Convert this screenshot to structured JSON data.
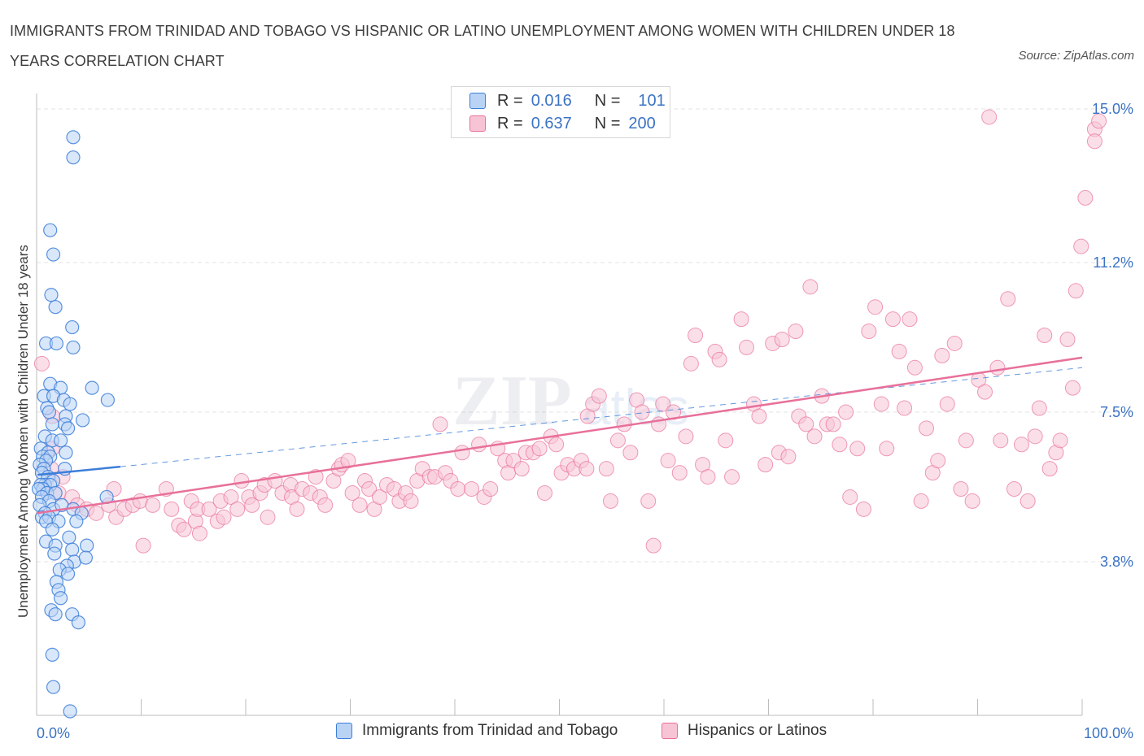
{
  "header": {
    "title": "IMMIGRANTS FROM TRINIDAD AND TOBAGO VS HISPANIC OR LATINO UNEMPLOYMENT AMONG WOMEN WITH CHILDREN UNDER 18 YEARS CORRELATION CHART",
    "source": "Source: ZipAtlas.com"
  },
  "colors": {
    "blue": "#3d7fd9",
    "blue_fill": "#b9d3f5",
    "pink": "#e8709a",
    "pink_fill": "#f7c4d6",
    "axis_text": "#3b73c4",
    "grid": "#e3e3e3"
  },
  "legend": {
    "rows": [
      {
        "r_label": "R =",
        "r_value": "0.016",
        "n_label": "N =",
        "n_value": "101"
      },
      {
        "r_label": "R =",
        "r_value": "0.637",
        "n_label": "N =",
        "n_value": "200"
      }
    ],
    "bottom": [
      {
        "label": "Immigrants from Trinidad and Tobago"
      },
      {
        "label": "Hispanics or Latinos"
      }
    ]
  },
  "chart_data": {
    "type": "scatter",
    "title": "IMMIGRANTS FROM TRINIDAD AND TOBAGO VS HISPANIC OR LATINO UNEMPLOYMENT AMONG WOMEN WITH CHILDREN UNDER 18 YEARS CORRELATION CHART",
    "ylabel": "Unemployment Among Women with Children Under 18 years",
    "xlabel": "",
    "xlim": [
      0,
      100
    ],
    "ylim": [
      0,
      15.0
    ],
    "x_tick_labels": [
      "0.0%",
      "100.0%"
    ],
    "y_ticks": [
      3.8,
      7.5,
      11.2,
      15.0
    ],
    "y_tick_labels": [
      "3.8%",
      "7.5%",
      "11.2%",
      "15.0%"
    ],
    "grid": true,
    "legend_position": "top-center",
    "watermark": "ZIPatlas",
    "series": [
      {
        "name": "Immigrants from Trinidad and Tobago",
        "r": 0.016,
        "n": 101,
        "trend": {
          "x": [
            0.1,
            8.0
          ],
          "y": [
            5.95,
            6.15
          ],
          "dashed_extension_to": [
            100,
            8.6
          ]
        },
        "points": [
          [
            3.5,
            14.3
          ],
          [
            3.5,
            13.8
          ],
          [
            1.3,
            12.0
          ],
          [
            1.6,
            11.4
          ],
          [
            1.4,
            10.4
          ],
          [
            1.8,
            10.1
          ],
          [
            3.4,
            9.6
          ],
          [
            0.9,
            9.2
          ],
          [
            1.9,
            9.2
          ],
          [
            3.5,
            9.1
          ],
          [
            1.3,
            8.2
          ],
          [
            2.3,
            8.1
          ],
          [
            5.3,
            8.1
          ],
          [
            0.7,
            7.9
          ],
          [
            1.6,
            7.9
          ],
          [
            2.6,
            7.8
          ],
          [
            3.2,
            7.7
          ],
          [
            6.8,
            7.8
          ],
          [
            1.0,
            7.6
          ],
          [
            1.2,
            7.5
          ],
          [
            2.8,
            7.4
          ],
          [
            4.4,
            7.3
          ],
          [
            1.5,
            7.2
          ],
          [
            2.7,
            7.2
          ],
          [
            3.0,
            7.1
          ],
          [
            0.8,
            6.9
          ],
          [
            1.5,
            6.8
          ],
          [
            2.3,
            6.8
          ],
          [
            0.4,
            6.6
          ],
          [
            1.1,
            6.5
          ],
          [
            2.8,
            6.5
          ],
          [
            0.6,
            6.4
          ],
          [
            1.3,
            6.4
          ],
          [
            0.9,
            6.3
          ],
          [
            0.3,
            6.2
          ],
          [
            0.7,
            6.1
          ],
          [
            2.7,
            6.1
          ],
          [
            0.5,
            6.0
          ],
          [
            1.1,
            5.9
          ],
          [
            1.6,
            5.8
          ],
          [
            0.8,
            5.7
          ],
          [
            0.4,
            5.7
          ],
          [
            1.3,
            5.7
          ],
          [
            0.6,
            5.6
          ],
          [
            0.2,
            5.6
          ],
          [
            1.0,
            5.5
          ],
          [
            1.8,
            5.5
          ],
          [
            0.5,
            5.4
          ],
          [
            1.2,
            5.3
          ],
          [
            0.3,
            5.2
          ],
          [
            1.6,
            5.1
          ],
          [
            0.8,
            5.0
          ],
          [
            2.4,
            5.2
          ],
          [
            3.5,
            5.1
          ],
          [
            4.3,
            5.0
          ],
          [
            6.7,
            5.4
          ],
          [
            0.5,
            4.9
          ],
          [
            1.2,
            4.9
          ],
          [
            0.9,
            4.8
          ],
          [
            2.1,
            4.8
          ],
          [
            3.8,
            4.8
          ],
          [
            1.5,
            4.6
          ],
          [
            3.1,
            4.4
          ],
          [
            0.9,
            4.3
          ],
          [
            1.8,
            4.2
          ],
          [
            3.4,
            4.1
          ],
          [
            4.8,
            4.2
          ],
          [
            1.7,
            4.0
          ],
          [
            3.6,
            3.8
          ],
          [
            4.7,
            3.9
          ],
          [
            2.9,
            3.7
          ],
          [
            2.2,
            3.6
          ],
          [
            3.0,
            3.5
          ],
          [
            1.9,
            3.3
          ],
          [
            2.1,
            3.1
          ],
          [
            2.3,
            2.9
          ],
          [
            1.4,
            2.6
          ],
          [
            1.8,
            2.5
          ],
          [
            3.4,
            2.5
          ],
          [
            4.0,
            2.3
          ],
          [
            1.5,
            1.5
          ],
          [
            1.6,
            0.7
          ],
          [
            3.2,
            0.1
          ]
        ]
      },
      {
        "name": "Hispanics or Latinos",
        "r": 0.637,
        "n": 200,
        "trend": {
          "x": [
            0,
            100
          ],
          "y": [
            5.0,
            8.85
          ]
        },
        "points": [
          [
            0.5,
            8.7
          ],
          [
            1.5,
            7.4
          ],
          [
            1.5,
            6.6
          ],
          [
            1.4,
            6.1
          ],
          [
            2.5,
            5.9
          ],
          [
            2.1,
            5.5
          ],
          [
            3.4,
            5.4
          ],
          [
            3.9,
            5.2
          ],
          [
            4.8,
            5.1
          ],
          [
            5.7,
            5.0
          ],
          [
            6.9,
            5.2
          ],
          [
            7.4,
            5.6
          ],
          [
            7.6,
            4.9
          ],
          [
            8.4,
            5.1
          ],
          [
            9.2,
            5.2
          ],
          [
            9.9,
            5.3
          ],
          [
            10.2,
            4.2
          ],
          [
            11.1,
            5.2
          ],
          [
            12.4,
            5.6
          ],
          [
            12.9,
            5.1
          ],
          [
            13.6,
            4.7
          ],
          [
            14.1,
            4.6
          ],
          [
            14.8,
            5.3
          ],
          [
            15.2,
            4.8
          ],
          [
            15.4,
            5.1
          ],
          [
            15.6,
            4.5
          ],
          [
            16.5,
            5.1
          ],
          [
            17.3,
            4.8
          ],
          [
            17.6,
            5.3
          ],
          [
            17.9,
            4.9
          ],
          [
            18.6,
            5.4
          ],
          [
            19.2,
            5.1
          ],
          [
            19.6,
            5.8
          ],
          [
            20.3,
            5.4
          ],
          [
            20.6,
            5.2
          ],
          [
            21.4,
            5.5
          ],
          [
            21.8,
            5.7
          ],
          [
            22.1,
            4.9
          ],
          [
            22.8,
            5.8
          ],
          [
            23.5,
            5.5
          ],
          [
            24.3,
            5.7
          ],
          [
            24.4,
            5.4
          ],
          [
            24.9,
            5.1
          ],
          [
            25.4,
            5.6
          ],
          [
            26.2,
            5.5
          ],
          [
            26.7,
            5.9
          ],
          [
            27.1,
            5.4
          ],
          [
            27.6,
            5.2
          ],
          [
            28.4,
            5.8
          ],
          [
            28.9,
            6.1
          ],
          [
            29.2,
            6.2
          ],
          [
            29.8,
            6.3
          ],
          [
            30.2,
            5.5
          ],
          [
            30.9,
            5.2
          ],
          [
            31.4,
            5.8
          ],
          [
            31.8,
            5.6
          ],
          [
            32.3,
            5.1
          ],
          [
            32.8,
            5.4
          ],
          [
            33.5,
            5.7
          ],
          [
            34.2,
            5.6
          ],
          [
            34.7,
            5.3
          ],
          [
            35.3,
            5.5
          ],
          [
            35.8,
            5.3
          ],
          [
            36.4,
            5.8
          ],
          [
            36.9,
            6.1
          ],
          [
            37.6,
            5.9
          ],
          [
            38.1,
            5.9
          ],
          [
            38.6,
            7.2
          ],
          [
            39.1,
            6.0
          ],
          [
            39.6,
            5.8
          ],
          [
            40.3,
            5.6
          ],
          [
            40.7,
            6.5
          ],
          [
            41.6,
            5.6
          ],
          [
            42.3,
            6.7
          ],
          [
            42.8,
            5.4
          ],
          [
            43.4,
            5.6
          ],
          [
            44.1,
            6.6
          ],
          [
            44.8,
            6.3
          ],
          [
            45.1,
            6.0
          ],
          [
            45.6,
            6.3
          ],
          [
            46.4,
            6.1
          ],
          [
            46.8,
            6.5
          ],
          [
            47.5,
            6.5
          ],
          [
            48.1,
            6.6
          ],
          [
            48.6,
            5.5
          ],
          [
            49.2,
            6.9
          ],
          [
            49.7,
            6.7
          ],
          [
            50.2,
            6.0
          ],
          [
            50.8,
            6.2
          ],
          [
            51.4,
            6.1
          ],
          [
            52.1,
            6.3
          ],
          [
            52.6,
            6.1
          ],
          [
            52.7,
            7.4
          ],
          [
            53.2,
            7.7
          ],
          [
            53.8,
            7.9
          ],
          [
            54.5,
            6.1
          ],
          [
            54.9,
            5.3
          ],
          [
            55.6,
            6.8
          ],
          [
            56.2,
            7.2
          ],
          [
            56.8,
            6.5
          ],
          [
            57.4,
            7.8
          ],
          [
            57.9,
            7.5
          ],
          [
            58.5,
            5.3
          ],
          [
            59.0,
            4.2
          ],
          [
            59.5,
            7.2
          ],
          [
            59.9,
            7.7
          ],
          [
            60.4,
            6.3
          ],
          [
            60.9,
            7.5
          ],
          [
            61.5,
            6.0
          ],
          [
            62.1,
            6.9
          ],
          [
            62.6,
            8.7
          ],
          [
            63.0,
            9.4
          ],
          [
            63.7,
            6.2
          ],
          [
            64.2,
            5.9
          ],
          [
            64.9,
            9.0
          ],
          [
            65.3,
            8.8
          ],
          [
            65.9,
            6.8
          ],
          [
            66.5,
            5.9
          ],
          [
            67.4,
            9.8
          ],
          [
            67.9,
            9.1
          ],
          [
            68.6,
            7.7
          ],
          [
            69.1,
            7.4
          ],
          [
            69.7,
            6.2
          ],
          [
            70.4,
            9.2
          ],
          [
            71.0,
            6.5
          ],
          [
            71.3,
            9.3
          ],
          [
            71.9,
            6.4
          ],
          [
            72.6,
            9.5
          ],
          [
            72.9,
            7.4
          ],
          [
            73.6,
            7.2
          ],
          [
            74.0,
            10.6
          ],
          [
            74.4,
            6.9
          ],
          [
            75.1,
            7.9
          ],
          [
            75.6,
            7.2
          ],
          [
            76.2,
            7.2
          ],
          [
            76.8,
            6.7
          ],
          [
            77.4,
            7.5
          ],
          [
            77.8,
            5.4
          ],
          [
            78.5,
            6.6
          ],
          [
            79.1,
            5.1
          ],
          [
            79.6,
            9.5
          ],
          [
            80.2,
            10.1
          ],
          [
            80.8,
            7.7
          ],
          [
            81.3,
            6.6
          ],
          [
            81.9,
            9.8
          ],
          [
            82.5,
            9.0
          ],
          [
            83.0,
            7.6
          ],
          [
            83.5,
            9.8
          ],
          [
            84.0,
            8.6
          ],
          [
            84.6,
            5.3
          ],
          [
            85.1,
            7.1
          ],
          [
            85.7,
            6.0
          ],
          [
            86.2,
            6.3
          ],
          [
            86.6,
            8.9
          ],
          [
            87.1,
            7.7
          ],
          [
            87.8,
            9.2
          ],
          [
            88.4,
            5.6
          ],
          [
            88.9,
            6.8
          ],
          [
            89.5,
            5.3
          ],
          [
            90.1,
            8.3
          ],
          [
            90.7,
            8.0
          ],
          [
            91.1,
            14.8
          ],
          [
            91.9,
            8.6
          ],
          [
            92.2,
            6.8
          ],
          [
            92.9,
            10.3
          ],
          [
            93.5,
            5.6
          ],
          [
            94.2,
            6.7
          ],
          [
            94.8,
            5.3
          ],
          [
            95.5,
            6.9
          ],
          [
            95.9,
            7.6
          ],
          [
            96.4,
            9.4
          ],
          [
            96.9,
            6.1
          ],
          [
            97.5,
            6.5
          ],
          [
            97.9,
            6.8
          ],
          [
            98.6,
            9.3
          ],
          [
            99.1,
            8.1
          ],
          [
            99.4,
            10.5
          ],
          [
            99.9,
            11.6
          ],
          [
            100.3,
            12.8
          ],
          [
            101.2,
            14.5
          ],
          [
            101.6,
            14.7
          ],
          [
            101.2,
            14.2
          ]
        ]
      }
    ]
  }
}
